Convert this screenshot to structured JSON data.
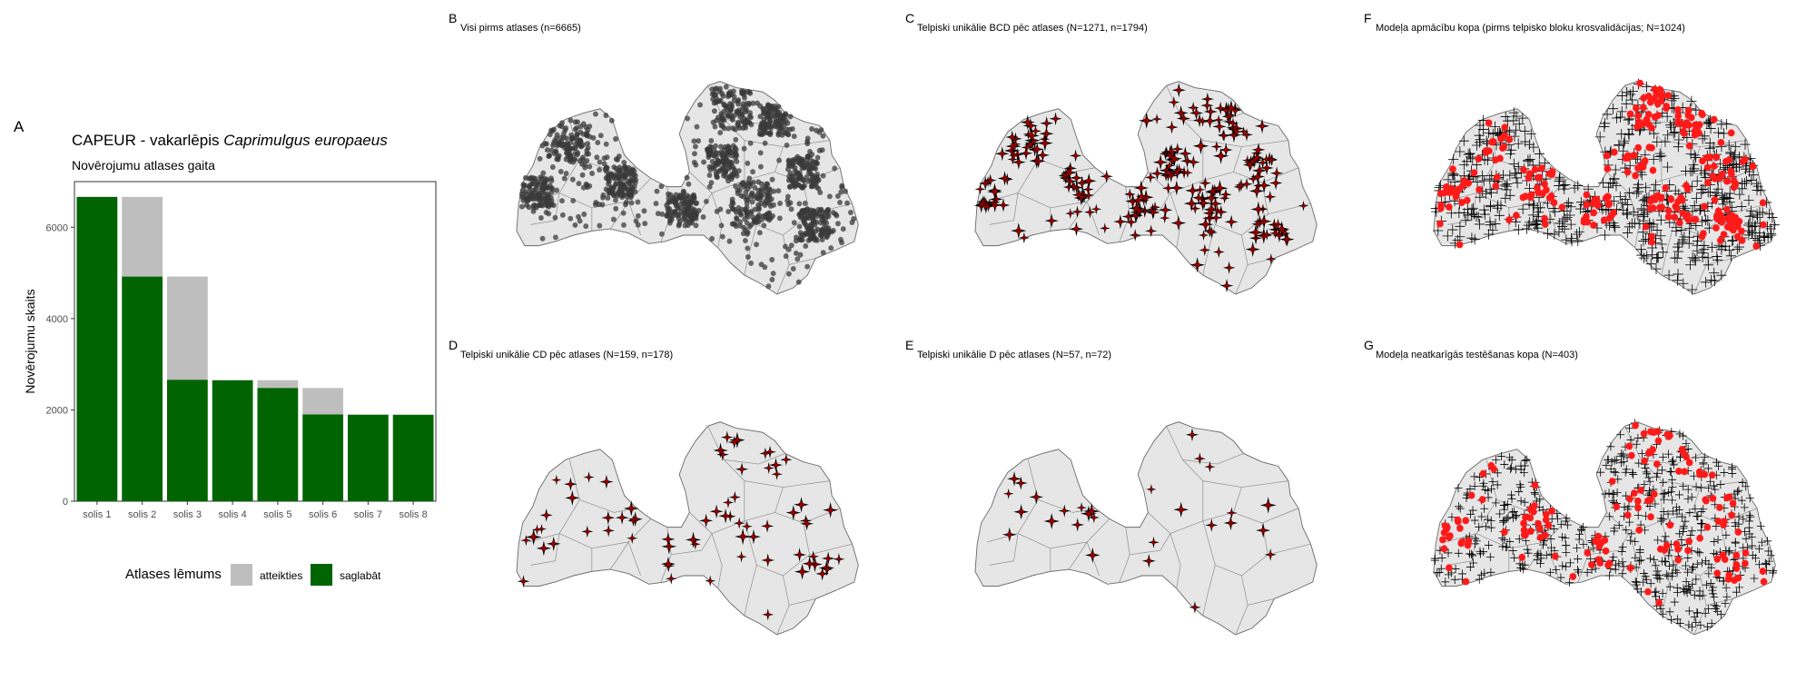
{
  "panel_a": {
    "letter": "A",
    "title_prefix": "CAPEUR - vakarlēpis ",
    "title_species": "Caprimulgus europaeus",
    "subtitle": "Novērojumu atlases gaita",
    "colors": {
      "atteikties": "#bebebe",
      "saglabat": "#006400"
    }
  },
  "legend": {
    "title": "Atlases lēmums",
    "items": [
      {
        "label": "atteikties",
        "color": "#bebebe"
      },
      {
        "label": "saglabāt",
        "color": "#006400"
      }
    ]
  },
  "chart_data": {
    "type": "bar",
    "stacked": true,
    "title": "CAPEUR - vakarlēpis Caprimulgus europaeus",
    "subtitle": "Novērojumu atlases gaita",
    "xlabel": "",
    "ylabel": "Novērojumu skaits",
    "ylim": [
      0,
      7000
    ],
    "yticks": [
      0,
      2000,
      4000,
      6000
    ],
    "grid": false,
    "legend_position": "bottom",
    "categories": [
      "solis 1",
      "solis 2",
      "solis 3",
      "solis 4",
      "solis 5",
      "solis 6",
      "solis 7",
      "solis 8"
    ],
    "series": [
      {
        "name": "saglabāt",
        "color": "#006400",
        "values": [
          6665,
          4920,
          2660,
          2650,
          2480,
          1900,
          1895,
          1894
        ]
      },
      {
        "name": "atteikties",
        "color": "#bebebe",
        "values": [
          0,
          1745,
          2260,
          0,
          170,
          580,
          0,
          0
        ]
      }
    ]
  },
  "maps": [
    {
      "id": "B",
      "letter": "B",
      "title": "Visi pirms atlases (n=6665)",
      "style": "all_points",
      "point_color": "#3a3a3a"
    },
    {
      "id": "C",
      "letter": "C",
      "title": "Telpiski unikālie BCD pēc atlases (N=1271, n=1794)",
      "style": "crosses",
      "point_color": "#8b0000"
    },
    {
      "id": "F",
      "letter": "F",
      "title": "Modeļa apmācību kopa (pirms telpisko bloku krosvalidācijas; N=1024)",
      "style": "training",
      "point_color": "#ff1a1a"
    },
    {
      "id": "D",
      "letter": "D",
      "title": "Telpiski unikālie CD pēc atlases (N=159, n=178)",
      "style": "crosses",
      "point_color": "#8b0000"
    },
    {
      "id": "E",
      "letter": "E",
      "title": "Telpiski unikālie D pēc atlases (N=57, n=72)",
      "style": "crosses",
      "point_color": "#8b0000"
    },
    {
      "id": "G",
      "letter": "G",
      "title": "Modeļa neatkarīgās testēšanas kopa (N=403)",
      "style": "testing",
      "point_color": "#ff1a1a"
    }
  ]
}
